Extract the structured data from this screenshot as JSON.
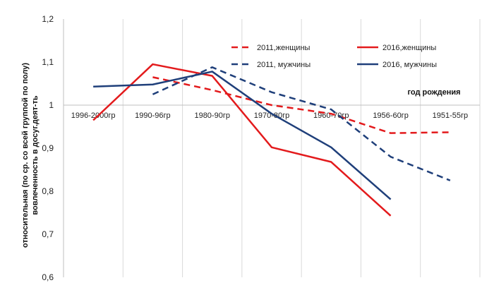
{
  "chart_data": {
    "type": "line",
    "xlabel": "год рождения",
    "ylabel_lines": [
      "относительная (по ср. со всей группой по полу)",
      "вовлеченность в досуг.деят-ть"
    ],
    "categories": [
      "1996-2000гр",
      "1990-96гр",
      "1980-90гр",
      "1970-80гр",
      "1960-70гр",
      "1956-60гр",
      "1951-55гр"
    ],
    "ylim": [
      0.6,
      1.2
    ],
    "yticks": [
      "0,6",
      "0,7",
      "0,8",
      "0,9",
      "1",
      "1,1",
      "1,2"
    ],
    "grid": "vertical",
    "legend_position": "top-right",
    "series": [
      {
        "name": "2011,женщины",
        "color": "#e31a1c",
        "dashed": true,
        "values": [
          null,
          1.065,
          1.035,
          1.0,
          0.98,
          0.935,
          0.937
        ]
      },
      {
        "name": "2016,женщины",
        "color": "#e31a1c",
        "dashed": false,
        "values": [
          0.965,
          1.095,
          1.068,
          0.902,
          0.868,
          0.743,
          null
        ]
      },
      {
        "name": "2011, мужчины",
        "color": "#1f3f7a",
        "dashed": true,
        "values": [
          null,
          1.025,
          1.088,
          1.03,
          0.99,
          0.88,
          0.825
        ]
      },
      {
        "name": "2016, мужчины",
        "color": "#1f3f7a",
        "dashed": false,
        "values": [
          1.043,
          1.048,
          1.078,
          0.98,
          0.902,
          0.781,
          null
        ]
      }
    ]
  }
}
